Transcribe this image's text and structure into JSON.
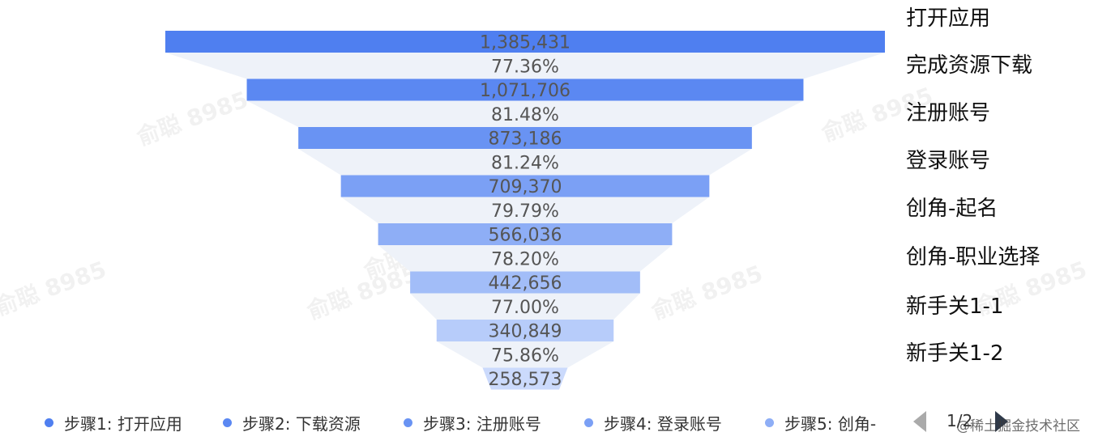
{
  "chart_data": {
    "type": "funnel",
    "stages": [
      {
        "label": "打开应用",
        "value": 1385431,
        "value_text": "1,385,431",
        "color": "#4f7ff0"
      },
      {
        "label": "完成资源下载",
        "value": 1071706,
        "value_text": "1,071,706",
        "color": "#5b88f2"
      },
      {
        "label": "注册账号",
        "value": 873186,
        "value_text": "873,186",
        "color": "#6993f3"
      },
      {
        "label": "登录账号",
        "value": 709370,
        "value_text": "709,370",
        "color": "#7ba0f5"
      },
      {
        "label": "创角-起名",
        "value": 566036,
        "value_text": "566,036",
        "color": "#8eaef6"
      },
      {
        "label": "创角-职业选择",
        "value": 442656,
        "value_text": "442,656",
        "color": "#a2bdf8"
      },
      {
        "label": "新手关1-1",
        "value": 340849,
        "value_text": "340,849",
        "color": "#b7ccfa"
      },
      {
        "label": "新手关1-2",
        "value": 258573,
        "value_text": "258,573",
        "color": "#cbdafc"
      }
    ],
    "conversion_rates": [
      "77.36%",
      "81.48%",
      "81.24%",
      "79.79%",
      "78.20%",
      "77.00%",
      "75.86%"
    ]
  },
  "legend": {
    "items": [
      {
        "label": "步骤1: 打开应用",
        "color": "#4f7ff0"
      },
      {
        "label": "步骤2: 下载资源",
        "color": "#5b88f2"
      },
      {
        "label": "步骤3: 注册账号",
        "color": "#6993f3"
      },
      {
        "label": "步骤4: 登录账号",
        "color": "#7ba0f5"
      },
      {
        "label": "步骤5: 创角-",
        "color": "#8eaef6"
      }
    ],
    "page_text": "1/2"
  },
  "watermarks": {
    "text": "俞聪 8985",
    "site_text": "@稀土掘金技术社区"
  }
}
